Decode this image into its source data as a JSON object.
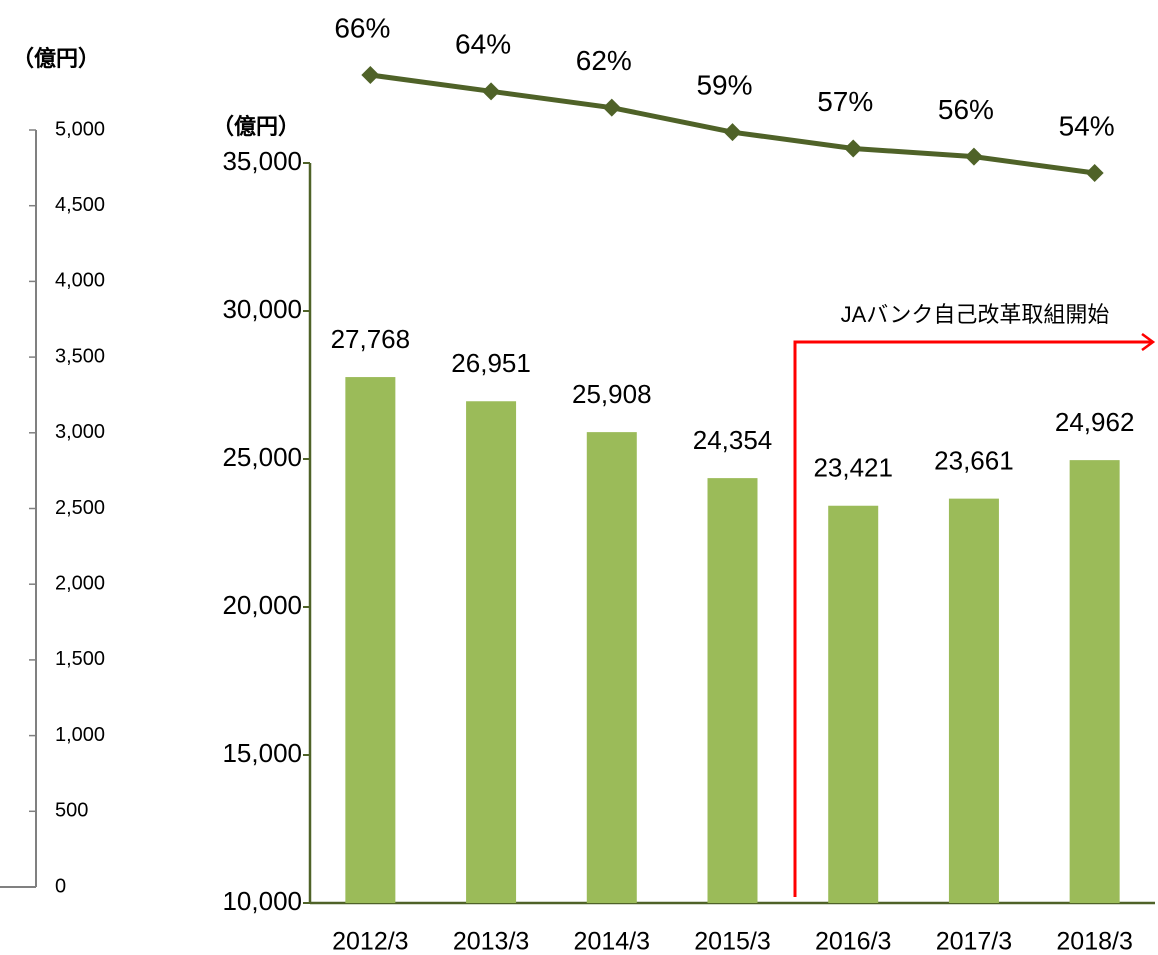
{
  "chart_data": {
    "type": "bar",
    "y_unit_label": "（億円）",
    "y2_unit_label": "（億円）",
    "annotation": "JAバンク自己改革取組開始",
    "categories": [
      "2012/3",
      "2013/3",
      "2014/3",
      "2015/3",
      "2016/3",
      "2017/3",
      "2018/3"
    ],
    "series": [
      {
        "type": "bar",
        "color": "#9bbb59",
        "values": [
          27768,
          26951,
          25908,
          24354,
          23421,
          23661,
          24962
        ],
        "value_labels": [
          "27,768",
          "26,951",
          "25,908",
          "24,354",
          "23,421",
          "23,661",
          "24,962"
        ]
      },
      {
        "type": "line",
        "color": "#4f6228",
        "values": [
          66,
          64,
          62,
          59,
          57,
          56,
          54
        ],
        "value_labels": [
          "66%",
          "64%",
          "62%",
          "59%",
          "57%",
          "56%",
          "54%"
        ]
      }
    ],
    "ylim": [
      10000,
      35000
    ],
    "yticks": [
      {
        "value": 10000,
        "label": "10,000"
      },
      {
        "value": 15000,
        "label": "15,000"
      },
      {
        "value": 20000,
        "label": "20,000"
      },
      {
        "value": 25000,
        "label": "25,000"
      },
      {
        "value": 30000,
        "label": "30,000"
      },
      {
        "value": 35000,
        "label": "35,000"
      }
    ],
    "y2lim": [
      0,
      5000
    ],
    "y2ticks": [
      0,
      500,
      {
        "value": 1000,
        "label": "1,000"
      },
      {
        "value": 1500,
        "label": "1,500"
      },
      {
        "value": 2000,
        "label": "2,000"
      },
      {
        "value": 2500,
        "label": "2,500"
      },
      {
        "value": 3000,
        "label": "3,000"
      },
      {
        "value": 3500,
        "label": "3,500"
      },
      {
        "value": 4000,
        "label": "4,000"
      },
      {
        "value": 4500,
        "label": "4,500"
      },
      {
        "value": 5000,
        "label": "5,000"
      }
    ],
    "grid": false
  }
}
